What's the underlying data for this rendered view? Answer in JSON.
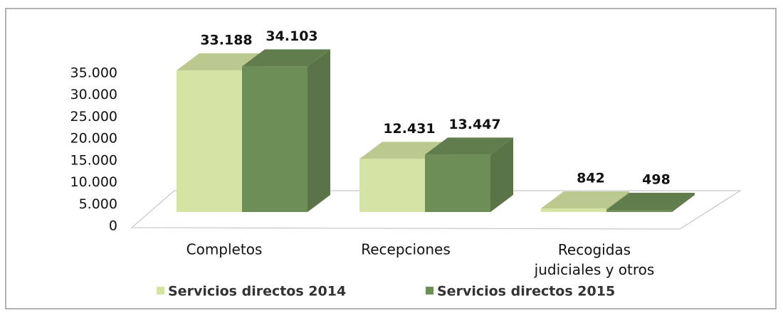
{
  "chart_data": {
    "type": "bar3d",
    "categories": [
      "Completos",
      "Recepciones",
      "Recogidas judiciales y otros"
    ],
    "series": [
      {
        "name": "Servicios directos 2014",
        "color": "#d5e3a4",
        "values": [
          33188,
          12431,
          842
        ],
        "value_labels": [
          "33.188",
          "12.431",
          "842"
        ]
      },
      {
        "name": "Servicios directos 2015",
        "color": "#6e8e57",
        "values": [
          34103,
          13447,
          498
        ],
        "value_labels": [
          "34.103",
          "13.447",
          "498"
        ]
      }
    ],
    "ylim": [
      0,
      35000
    ],
    "yticks": [
      0,
      {
        "value": 5000,
        "label": "5.000"
      },
      {
        "value": 10000,
        "label": "10.000"
      },
      {
        "value": 15000,
        "label": "15.000"
      },
      {
        "value": 20000,
        "label": "20.000"
      },
      {
        "value": 25000,
        "label": "25.000"
      },
      {
        "value": 30000,
        "label": "30.000"
      },
      {
        "value": 35000,
        "label": "35.000"
      }
    ],
    "grid": false,
    "legend": "bottom"
  }
}
